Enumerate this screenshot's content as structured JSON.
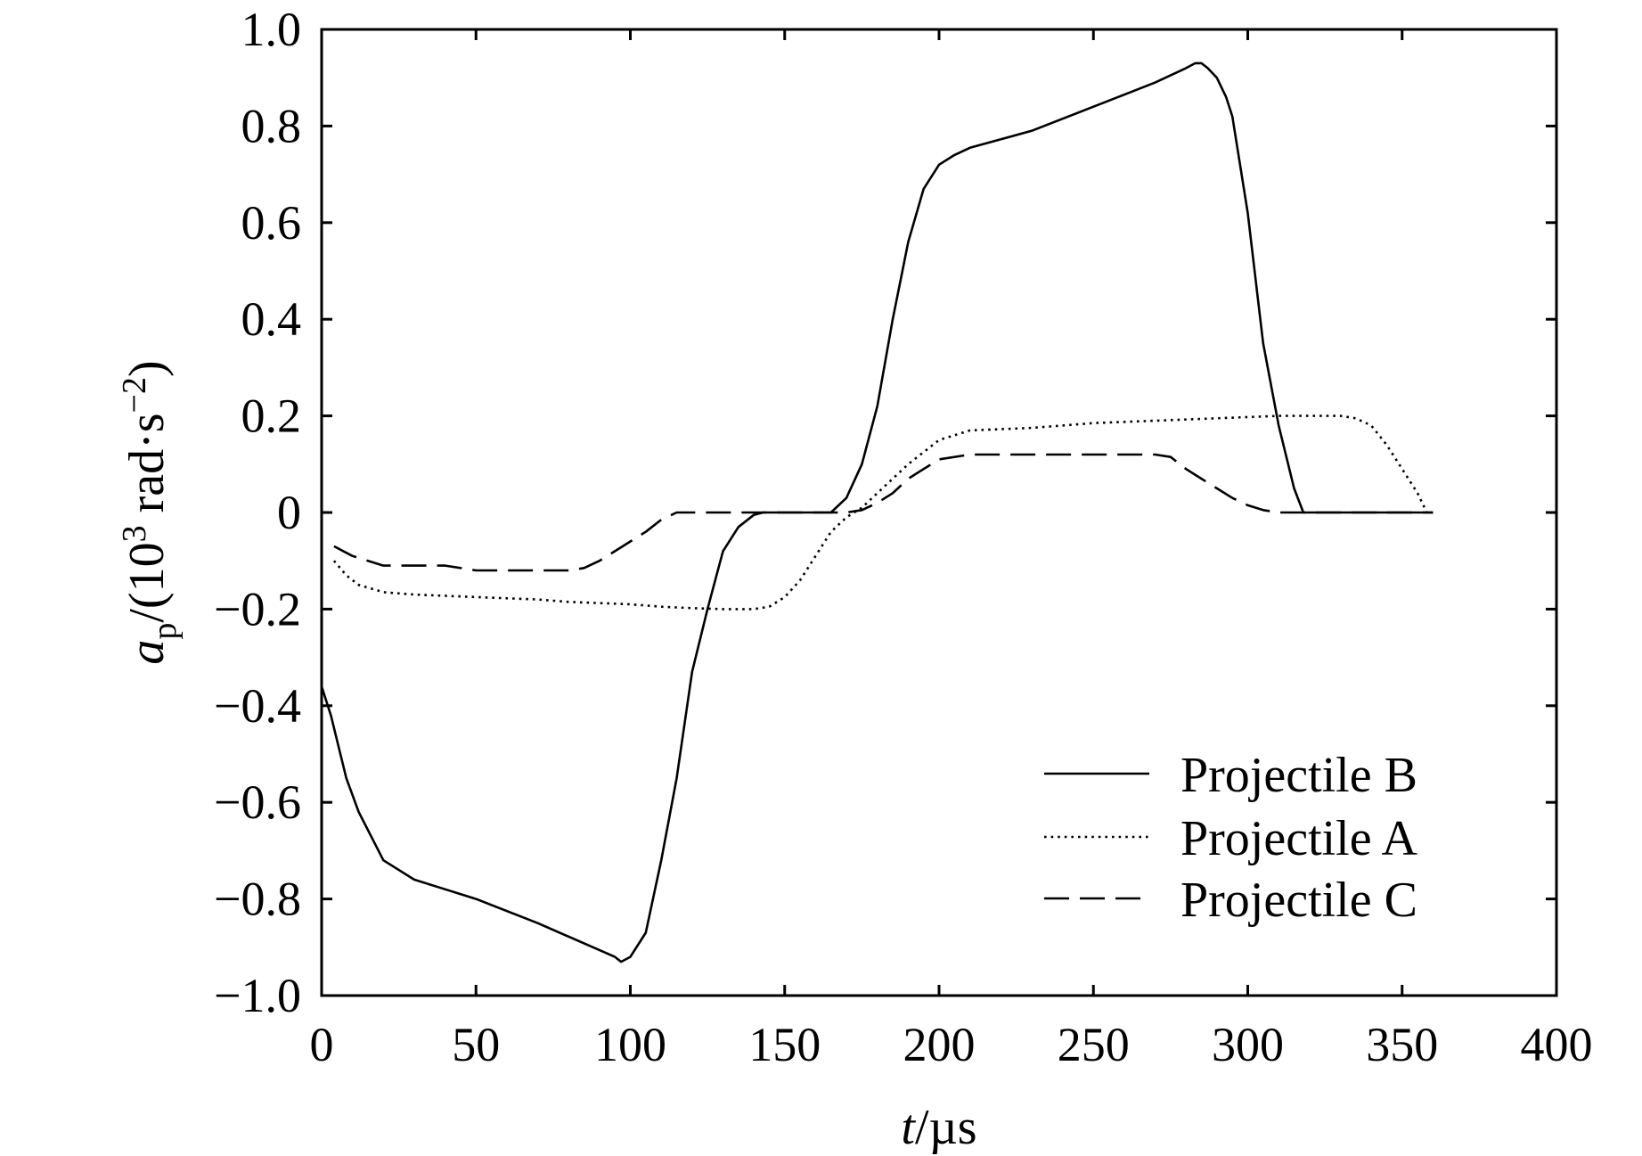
{
  "chart_data": {
    "type": "line",
    "title": "",
    "xlabel": {
      "var": "t",
      "unit": "/µs"
    },
    "ylabel": {
      "var": "a",
      "sub": "p",
      "mid": "/(10",
      "sup": "3",
      "mid2": " rad·s",
      "sup2": "−2",
      "end": ")"
    },
    "xlim": [
      0,
      400
    ],
    "ylim": [
      -1.0,
      1.0
    ],
    "x_ticks": [
      0,
      50,
      100,
      150,
      200,
      250,
      300,
      350,
      400
    ],
    "x_tick_labels": [
      "0",
      "50",
      "100",
      "150",
      "200",
      "250",
      "300",
      "350",
      "400"
    ],
    "y_ticks": [
      1.0,
      0.8,
      0.6,
      0.4,
      0.2,
      0,
      -0.2,
      -0.4,
      -0.6,
      -0.8,
      -1.0
    ],
    "y_tick_labels": [
      "1.0",
      "0.8",
      "0.6",
      "0.4",
      "0.2",
      "0",
      "−0.2",
      "−0.4",
      "−0.6",
      "−0.8",
      "−1.0"
    ],
    "grid": false,
    "legend_position": "bottom-right",
    "series": [
      {
        "name": "Projectile B",
        "style": "solid",
        "x": [
          0,
          3,
          8,
          12,
          20,
          30,
          50,
          70,
          95,
          97,
          100,
          105,
          110,
          115,
          120,
          125,
          130,
          135,
          140,
          143,
          160,
          165,
          170,
          175,
          180,
          185,
          190,
          195,
          200,
          205,
          210,
          230,
          250,
          270,
          280,
          283,
          285,
          287,
          290,
          293,
          295,
          300,
          305,
          310,
          315,
          318,
          330,
          350,
          360
        ],
        "y": [
          -0.36,
          -0.42,
          -0.55,
          -0.62,
          -0.72,
          -0.76,
          -0.8,
          -0.85,
          -0.92,
          -0.93,
          -0.92,
          -0.87,
          -0.72,
          -0.55,
          -0.33,
          -0.2,
          -0.08,
          -0.03,
          -0.005,
          0,
          0,
          0,
          0.03,
          0.1,
          0.22,
          0.4,
          0.56,
          0.67,
          0.72,
          0.74,
          0.755,
          0.79,
          0.84,
          0.89,
          0.92,
          0.93,
          0.93,
          0.92,
          0.9,
          0.86,
          0.82,
          0.62,
          0.35,
          0.18,
          0.05,
          0,
          0,
          0,
          0
        ]
      },
      {
        "name": "Projectile A",
        "style": "dotted",
        "x": [
          4,
          8,
          12,
          20,
          30,
          50,
          70,
          80,
          100,
          110,
          120,
          130,
          140,
          145,
          150,
          155,
          160,
          165,
          170,
          175,
          180,
          190,
          200,
          210,
          230,
          250,
          270,
          290,
          310,
          320,
          330,
          335,
          340,
          345,
          350,
          355,
          358
        ],
        "y": [
          -0.1,
          -0.13,
          -0.15,
          -0.165,
          -0.17,
          -0.175,
          -0.18,
          -0.185,
          -0.19,
          -0.195,
          -0.198,
          -0.2,
          -0.2,
          -0.195,
          -0.175,
          -0.14,
          -0.09,
          -0.04,
          -0.01,
          0.01,
          0.04,
          0.1,
          0.15,
          0.17,
          0.175,
          0.185,
          0.19,
          0.195,
          0.2,
          0.2,
          0.2,
          0.195,
          0.18,
          0.14,
          0.09,
          0.04,
          0
        ]
      },
      {
        "name": "Projectile C",
        "style": "dashed",
        "x": [
          4,
          10,
          20,
          30,
          40,
          50,
          60,
          70,
          80,
          85,
          90,
          95,
          100,
          105,
          110,
          115,
          120,
          130,
          140,
          150,
          160,
          165,
          170,
          175,
          180,
          185,
          190,
          195,
          200,
          210,
          220,
          250,
          270,
          275,
          280,
          285,
          290,
          295,
          300,
          305,
          310,
          315,
          320,
          360
        ],
        "y": [
          -0.07,
          -0.09,
          -0.11,
          -0.11,
          -0.11,
          -0.12,
          -0.12,
          -0.12,
          -0.12,
          -0.115,
          -0.1,
          -0.08,
          -0.06,
          -0.04,
          -0.015,
          0,
          0,
          0,
          0,
          0,
          0,
          0,
          0,
          0.005,
          0.02,
          0.04,
          0.07,
          0.09,
          0.11,
          0.12,
          0.12,
          0.12,
          0.12,
          0.115,
          0.09,
          0.07,
          0.05,
          0.03,
          0.015,
          0.005,
          0,
          0,
          0,
          0
        ]
      }
    ]
  }
}
